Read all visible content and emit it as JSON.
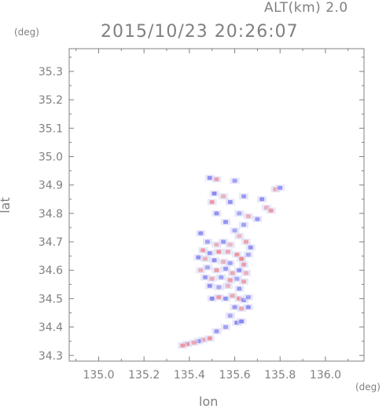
{
  "header": {
    "altitude_label": "ALT(km)  2.0",
    "timestamp": "2015/10/23 20:26:07"
  },
  "axes": {
    "y_unit": "(deg)",
    "x_unit": "(deg)",
    "y_title": "lat",
    "x_title": "lon"
  },
  "chart_data": {
    "type": "scatter",
    "xlim": [
      134.87,
      136.17
    ],
    "ylim": [
      34.28,
      35.38
    ],
    "x_ticks": [
      "135.0",
      "135.2",
      "135.4",
      "135.6",
      "135.8",
      "136.0"
    ],
    "x_tick_values": [
      135.0,
      135.2,
      135.4,
      135.6,
      135.8,
      136.0
    ],
    "y_ticks": [
      "34.3",
      "34.4",
      "34.5",
      "34.6",
      "34.7",
      "34.8",
      "34.9",
      "35.0",
      "35.1",
      "35.2",
      "35.3"
    ],
    "y_tick_values": [
      34.3,
      34.4,
      34.5,
      34.6,
      34.7,
      34.8,
      34.9,
      35.0,
      35.1,
      35.2,
      35.3
    ],
    "colors": {
      "negative": "#6f6fef",
      "positive": "#ef7a7a",
      "neutral": "#d9d9f7",
      "axis": "#808080"
    },
    "points": [
      {
        "lon": 135.49,
        "lat": 34.925,
        "v": -0.6
      },
      {
        "lon": 135.52,
        "lat": 34.92,
        "v": 0.5
      },
      {
        "lon": 135.6,
        "lat": 34.915,
        "v": -0.4
      },
      {
        "lon": 135.78,
        "lat": 34.885,
        "v": 0.5
      },
      {
        "lon": 135.8,
        "lat": 34.89,
        "v": -0.5
      },
      {
        "lon": 135.51,
        "lat": 34.87,
        "v": -0.7
      },
      {
        "lon": 135.55,
        "lat": 34.86,
        "v": 0.3
      },
      {
        "lon": 135.5,
        "lat": 34.84,
        "v": 0.6
      },
      {
        "lon": 135.58,
        "lat": 34.84,
        "v": -0.6
      },
      {
        "lon": 135.64,
        "lat": 34.86,
        "v": -0.5
      },
      {
        "lon": 135.72,
        "lat": 34.85,
        "v": -0.6
      },
      {
        "lon": 135.74,
        "lat": 34.82,
        "v": 0.4
      },
      {
        "lon": 135.76,
        "lat": 34.81,
        "v": 0.6
      },
      {
        "lon": 135.52,
        "lat": 34.8,
        "v": -0.6
      },
      {
        "lon": 135.62,
        "lat": 34.8,
        "v": -0.3
      },
      {
        "lon": 135.66,
        "lat": 34.79,
        "v": 0.3
      },
      {
        "lon": 135.7,
        "lat": 34.78,
        "v": -0.5
      },
      {
        "lon": 135.64,
        "lat": 34.76,
        "v": -0.4
      },
      {
        "lon": 135.56,
        "lat": 34.77,
        "v": -0.6
      },
      {
        "lon": 135.45,
        "lat": 34.73,
        "v": -0.6
      },
      {
        "lon": 135.6,
        "lat": 34.74,
        "v": -0.3
      },
      {
        "lon": 135.62,
        "lat": 34.72,
        "v": 0.2
      },
      {
        "lon": 135.48,
        "lat": 34.7,
        "v": -0.4
      },
      {
        "lon": 135.52,
        "lat": 34.69,
        "v": 0.3
      },
      {
        "lon": 135.55,
        "lat": 34.7,
        "v": -0.5
      },
      {
        "lon": 135.58,
        "lat": 34.69,
        "v": 0.2
      },
      {
        "lon": 135.65,
        "lat": 34.7,
        "v": 0.5
      },
      {
        "lon": 135.67,
        "lat": 34.68,
        "v": -0.6
      },
      {
        "lon": 135.46,
        "lat": 34.67,
        "v": 0.6
      },
      {
        "lon": 135.49,
        "lat": 34.66,
        "v": -0.5
      },
      {
        "lon": 135.53,
        "lat": 34.665,
        "v": 0.7
      },
      {
        "lon": 135.57,
        "lat": 34.665,
        "v": 0.4
      },
      {
        "lon": 135.61,
        "lat": 34.655,
        "v": 0.7
      },
      {
        "lon": 135.63,
        "lat": 34.64,
        "v": 0.8
      },
      {
        "lon": 135.66,
        "lat": 34.655,
        "v": -0.3
      },
      {
        "lon": 135.44,
        "lat": 34.645,
        "v": -0.6
      },
      {
        "lon": 135.47,
        "lat": 34.64,
        "v": 0.3
      },
      {
        "lon": 135.51,
        "lat": 34.635,
        "v": -0.6
      },
      {
        "lon": 135.55,
        "lat": 34.63,
        "v": 0.3
      },
      {
        "lon": 135.58,
        "lat": 34.625,
        "v": -0.4
      },
      {
        "lon": 135.64,
        "lat": 34.62,
        "v": 0.6
      },
      {
        "lon": 135.45,
        "lat": 34.6,
        "v": 0.3
      },
      {
        "lon": 135.48,
        "lat": 34.61,
        "v": -0.3
      },
      {
        "lon": 135.52,
        "lat": 34.6,
        "v": 0.6
      },
      {
        "lon": 135.56,
        "lat": 34.605,
        "v": -0.5
      },
      {
        "lon": 135.59,
        "lat": 34.59,
        "v": 0.4
      },
      {
        "lon": 135.62,
        "lat": 34.6,
        "v": -0.6
      },
      {
        "lon": 135.65,
        "lat": 34.59,
        "v": 0.3
      },
      {
        "lon": 135.47,
        "lat": 34.575,
        "v": -0.5
      },
      {
        "lon": 135.5,
        "lat": 34.57,
        "v": 0.4
      },
      {
        "lon": 135.54,
        "lat": 34.575,
        "v": -0.4
      },
      {
        "lon": 135.58,
        "lat": 34.565,
        "v": 0.6
      },
      {
        "lon": 135.61,
        "lat": 34.57,
        "v": -0.3
      },
      {
        "lon": 135.64,
        "lat": 34.56,
        "v": 0.5
      },
      {
        "lon": 135.49,
        "lat": 34.545,
        "v": -0.6
      },
      {
        "lon": 135.53,
        "lat": 34.54,
        "v": -0.3
      },
      {
        "lon": 135.57,
        "lat": 34.545,
        "v": 0.3
      },
      {
        "lon": 135.62,
        "lat": 34.535,
        "v": -0.5
      },
      {
        "lon": 135.5,
        "lat": 34.5,
        "v": -0.7
      },
      {
        "lon": 135.53,
        "lat": 34.505,
        "v": 0.6
      },
      {
        "lon": 135.56,
        "lat": 34.5,
        "v": -0.6
      },
      {
        "lon": 135.59,
        "lat": 34.51,
        "v": 0.4
      },
      {
        "lon": 135.62,
        "lat": 34.5,
        "v": 0.8
      },
      {
        "lon": 135.64,
        "lat": 34.495,
        "v": -0.6
      },
      {
        "lon": 135.66,
        "lat": 34.505,
        "v": -0.4
      },
      {
        "lon": 135.6,
        "lat": 34.47,
        "v": -0.5
      },
      {
        "lon": 135.63,
        "lat": 34.465,
        "v": 0.4
      },
      {
        "lon": 135.66,
        "lat": 34.47,
        "v": -0.6
      },
      {
        "lon": 135.58,
        "lat": 34.44,
        "v": -0.3
      },
      {
        "lon": 135.61,
        "lat": 34.415,
        "v": -0.8
      },
      {
        "lon": 135.63,
        "lat": 34.42,
        "v": -0.7
      },
      {
        "lon": 135.56,
        "lat": 34.4,
        "v": -0.4
      },
      {
        "lon": 135.52,
        "lat": 34.385,
        "v": -0.5
      },
      {
        "lon": 135.49,
        "lat": 34.36,
        "v": 0.7
      },
      {
        "lon": 135.46,
        "lat": 34.355,
        "v": 0.5
      },
      {
        "lon": 135.44,
        "lat": 34.35,
        "v": -0.6
      },
      {
        "lon": 135.42,
        "lat": 34.345,
        "v": 0.4
      },
      {
        "lon": 135.39,
        "lat": 34.34,
        "v": 0.8
      },
      {
        "lon": 135.37,
        "lat": 34.335,
        "v": 0.6
      }
    ]
  }
}
